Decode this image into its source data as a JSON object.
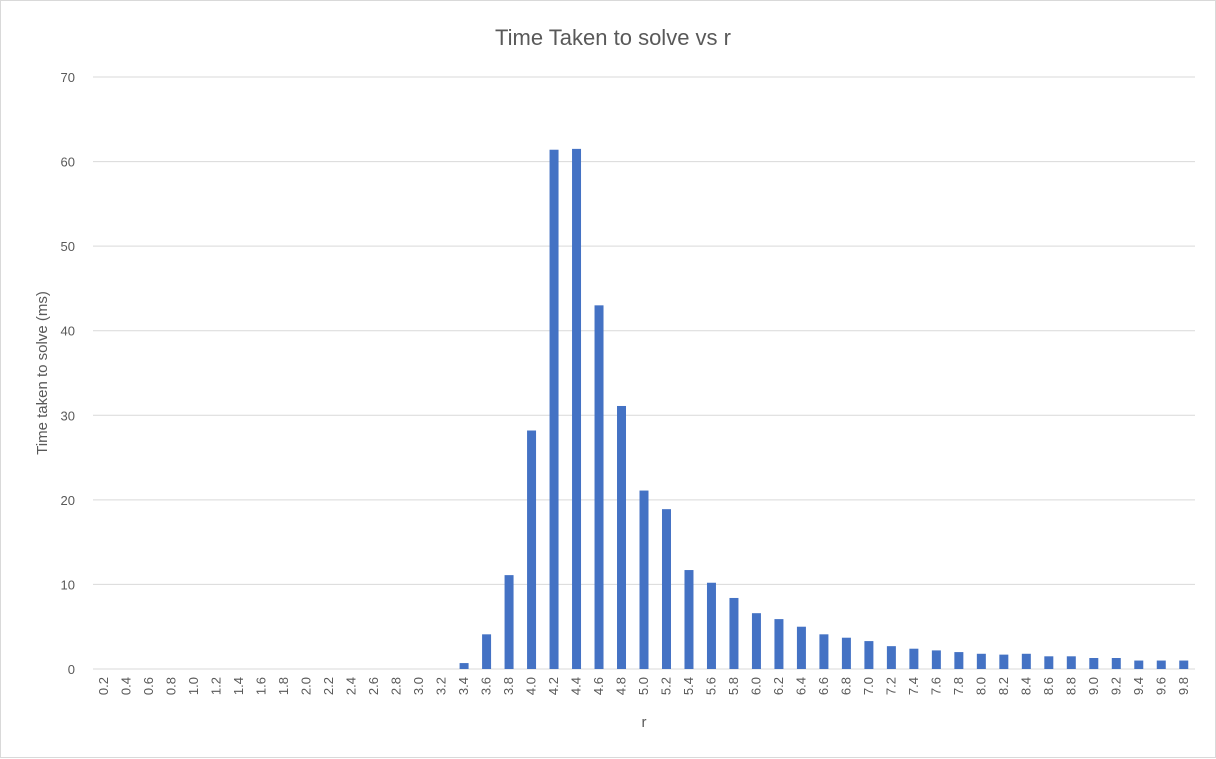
{
  "chart_data": {
    "type": "bar",
    "title": "Time Taken to solve vs r",
    "xlabel": "r",
    "ylabel": "Time taken to solve (ms)",
    "ylim": [
      0,
      70
    ],
    "yticks": [
      "0",
      "10",
      "20",
      "30",
      "40",
      "50",
      "60",
      "70"
    ],
    "grid": true,
    "legend": "none",
    "bar_color": "#4472c4",
    "categories": [
      "0.2",
      "0.4",
      "0.6",
      "0.8",
      "1.0",
      "1.2",
      "1.4",
      "1.6",
      "1.8",
      "2.0",
      "2.2",
      "2.4",
      "2.6",
      "2.8",
      "3.0",
      "3.2",
      "3.4",
      "3.6",
      "3.8",
      "4.0",
      "4.2",
      "4.4",
      "4.6",
      "4.8",
      "5.0",
      "5.2",
      "5.4",
      "5.6",
      "5.8",
      "6.0",
      "6.2",
      "6.4",
      "6.6",
      "6.8",
      "7.0",
      "7.2",
      "7.4",
      "7.6",
      "7.8",
      "8.0",
      "8.2",
      "8.4",
      "8.6",
      "8.8",
      "9.0",
      "9.2",
      "9.4",
      "9.6",
      "9.8"
    ],
    "values": [
      0,
      0,
      0,
      0,
      0,
      0,
      0,
      0,
      0,
      0,
      0,
      0,
      0,
      0,
      0,
      0,
      0.7,
      4.1,
      11.1,
      28.2,
      61.4,
      61.5,
      43.0,
      31.1,
      21.1,
      18.9,
      11.7,
      10.2,
      8.4,
      6.6,
      5.9,
      5.0,
      4.1,
      3.7,
      3.3,
      2.7,
      2.4,
      2.2,
      2.0,
      1.8,
      1.7,
      1.8,
      1.5,
      1.5,
      1.3,
      1.3,
      1.0,
      1.0,
      1.0
    ]
  }
}
